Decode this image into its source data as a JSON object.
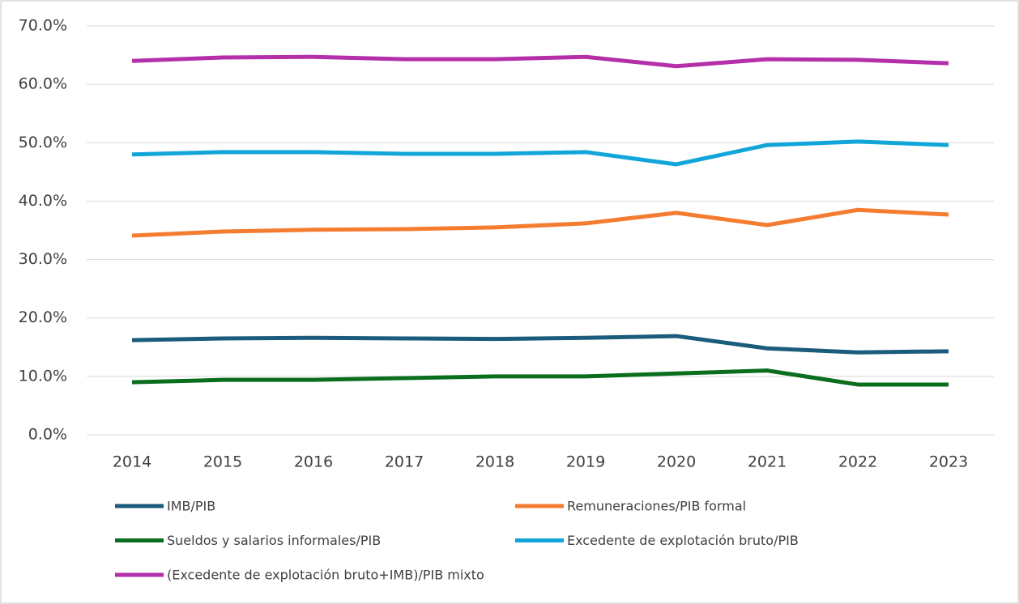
{
  "chart_data": {
    "type": "line",
    "categories": [
      "2014",
      "2015",
      "2016",
      "2017",
      "2018",
      "2019",
      "2020",
      "2021",
      "2022",
      "2023"
    ],
    "series": [
      {
        "name": "IMB/PIB",
        "color": "#1b5b7b",
        "values": [
          16.2,
          16.5,
          16.6,
          16.5,
          16.4,
          16.6,
          16.9,
          14.8,
          14.1,
          14.3
        ]
      },
      {
        "name": "Remuneraciones/PIB formal",
        "color": "#f47c30",
        "values": [
          34.1,
          34.8,
          35.1,
          35.2,
          35.5,
          36.2,
          38.0,
          35.9,
          38.5,
          37.7
        ]
      },
      {
        "name": "Sueldos y salarios informales/PIB",
        "color": "#0b6e1f",
        "values": [
          9.0,
          9.4,
          9.4,
          9.7,
          10.0,
          10.0,
          10.5,
          11.0,
          8.6,
          8.6
        ]
      },
      {
        "name": "Excedente de explotación bruto/PIB",
        "color": "#12a5d9",
        "values": [
          48.0,
          48.4,
          48.4,
          48.1,
          48.1,
          48.4,
          46.3,
          49.6,
          50.2,
          49.6
        ]
      },
      {
        "name": "(Excedente de explotación bruto+IMB)/PIB mixto",
        "color": "#b42fa8",
        "values": [
          64.0,
          64.6,
          64.7,
          64.3,
          64.3,
          64.7,
          63.1,
          64.3,
          64.2,
          63.6
        ]
      }
    ],
    "ylim": [
      0,
      70
    ],
    "yticks": [
      {
        "value": 0,
        "label": "0.0%"
      },
      {
        "value": 10,
        "label": "10.0%"
      },
      {
        "value": 20,
        "label": "20.0%"
      },
      {
        "value": 30,
        "label": "30.0%"
      },
      {
        "value": 40,
        "label": "40.0%"
      },
      {
        "value": 50,
        "label": "50.0%"
      },
      {
        "value": 60,
        "label": "60.0%"
      },
      {
        "value": 70,
        "label": "70.0%"
      }
    ],
    "grid": true
  }
}
